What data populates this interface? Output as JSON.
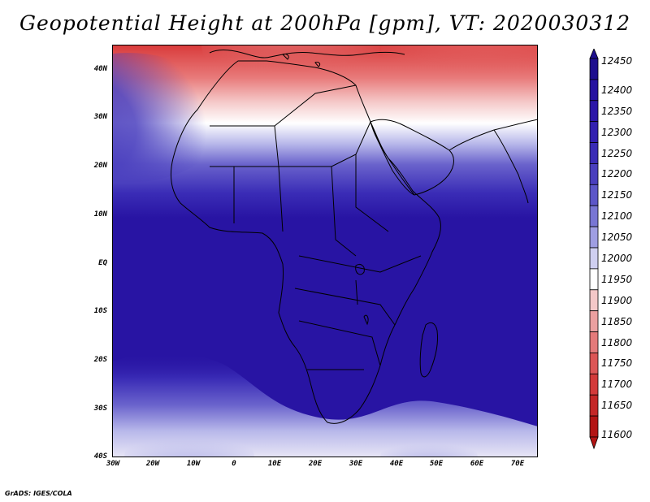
{
  "title": "Geopotential Height at 200hPa [gpm], VT: 2020030312",
  "credit": "GrADS: IGES/COLA",
  "lat_labels": [
    "40N",
    "30N",
    "20N",
    "10N",
    "EQ",
    "10S",
    "20S",
    "30S",
    "40S"
  ],
  "lon_labels": [
    "30W",
    "20W",
    "10W",
    "0",
    "10E",
    "20E",
    "30E",
    "40E",
    "50E",
    "60E",
    "70E"
  ],
  "map": {
    "lon_range": [
      -30,
      75
    ],
    "lat_range": [
      -40,
      45
    ],
    "field": "Geopotential height at 200 hPa",
    "unit": "gpm",
    "valid_time": "2020030312"
  },
  "legend": {
    "levels": [
      "12450",
      "12400",
      "12350",
      "12300",
      "12250",
      "12200",
      "12150",
      "12100",
      "12050",
      "12000",
      "11950",
      "11900",
      "11850",
      "11800",
      "11750",
      "11700",
      "11650",
      "11600"
    ],
    "colors": [
      "#1e0f8f",
      "#2612a0",
      "#2c16a8",
      "#3320b0",
      "#3a2cb6",
      "#4a3fbe",
      "#5c56c8",
      "#7876d4",
      "#9f9ee2",
      "#cfcff0",
      "#ffffff",
      "#f4c8c8",
      "#eba0a0",
      "#e47a7a",
      "#dc5656",
      "#d33a3a",
      "#c42727",
      "#b31414"
    ]
  }
}
